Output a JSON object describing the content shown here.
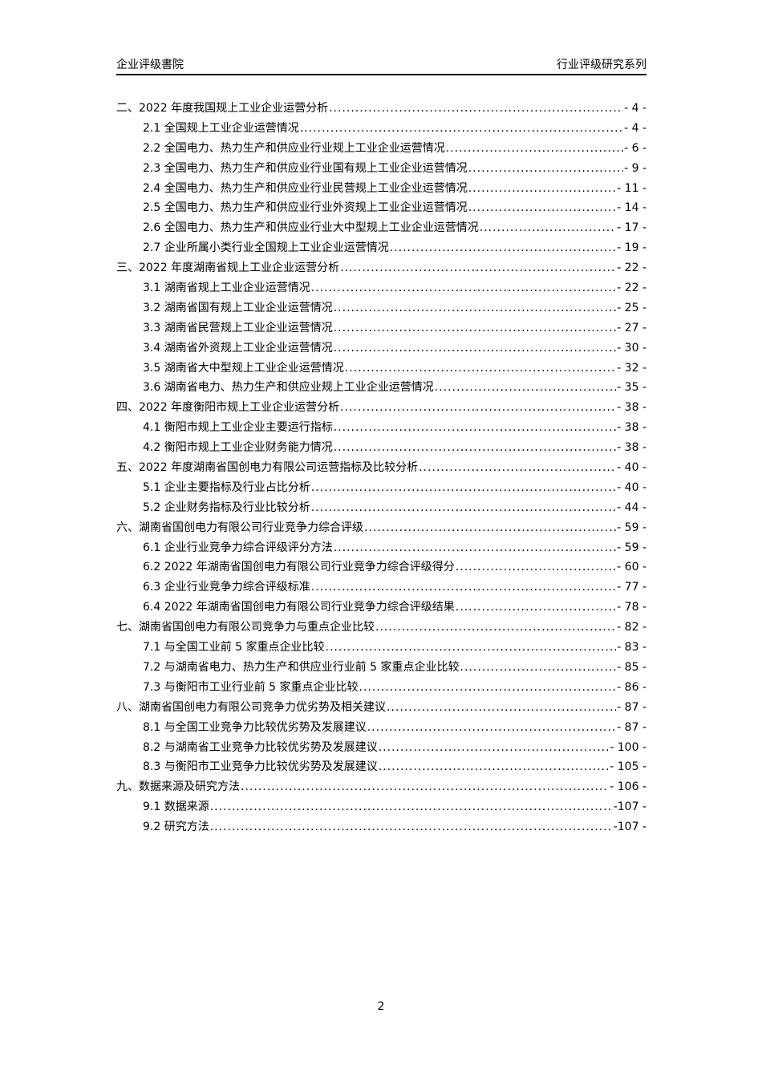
{
  "header": {
    "left": "企业评级書院",
    "right": "行业评级研究系列"
  },
  "toc": [
    {
      "level": 1,
      "label": "二、2022 年度我国规上工业企业运营分析",
      "page": "- 4 -"
    },
    {
      "level": 2,
      "label": "2.1 全国规上工业企业运营情况",
      "page": "- 4 -"
    },
    {
      "level": 2,
      "label": "2.2 全国电力、热力生产和供应业行业规上工业企业运营情况",
      "page": "- 6 -"
    },
    {
      "level": 2,
      "label": "2.3 全国电力、热力生产和供应业行业国有规上工业企业运营情况",
      "page": "- 9 -"
    },
    {
      "level": 2,
      "label": "2.4 全国电力、热力生产和供应业行业民营规上工业企业运营情况",
      "page": "- 11 -"
    },
    {
      "level": 2,
      "label": "2.5 全国电力、热力生产和供应业行业外资规上工业企业运营情况",
      "page": "- 14 -"
    },
    {
      "level": 2,
      "label": "2.6 全国电力、热力生产和供应业行业大中型规上工业企业运营情况",
      "page": "- 17 -"
    },
    {
      "level": 2,
      "label": "2.7 企业所属小类行业全国规上工业企业运营情况",
      "page": "- 19 -"
    },
    {
      "level": 1,
      "label": "三、2022 年度湖南省规上工业企业运营分析",
      "page": "- 22 -"
    },
    {
      "level": 2,
      "label": "3.1 湖南省规上工业企业运营情况",
      "page": "- 22 -"
    },
    {
      "level": 2,
      "label": "3.2 湖南省国有规上工业企业运营情况",
      "page": "- 25 -"
    },
    {
      "level": 2,
      "label": "3.3 湖南省民营规上工业企业运营情况",
      "page": "- 27 -"
    },
    {
      "level": 2,
      "label": "3.4 湖南省外资规上工业企业运营情况",
      "page": "- 30 -"
    },
    {
      "level": 2,
      "label": "3.5 湖南省大中型规上工业企业运营情况",
      "page": "- 32 -"
    },
    {
      "level": 2,
      "label": "3.6 湖南省电力、热力生产和供应业规上工业企业运营情况",
      "page": "- 35 -"
    },
    {
      "level": 1,
      "label": "四、2022 年度衡阳市规上工业企业运营分析",
      "page": "- 38 -"
    },
    {
      "level": 2,
      "label": "4.1 衡阳市规上工业企业主要运行指标",
      "page": "- 38 -"
    },
    {
      "level": 2,
      "label": "4.2 衡阳市规上工业企业财务能力情况",
      "page": "- 38 -"
    },
    {
      "level": 1,
      "label": "五、2022 年度湖南省国创电力有限公司运营指标及比较分析",
      "page": "- 40 -"
    },
    {
      "level": 2,
      "label": "5.1 企业主要指标及行业占比分析",
      "page": "- 40 -"
    },
    {
      "level": 2,
      "label": "5.2 企业财务指标及行业比较分析",
      "page": "- 44 -"
    },
    {
      "level": 1,
      "label": "六、湖南省国创电力有限公司行业竞争力综合评级",
      "page": "- 59 -"
    },
    {
      "level": 2,
      "label": "6.1 企业行业竞争力综合评级评分方法",
      "page": "- 59 -"
    },
    {
      "level": 2,
      "label": "6.2 2022 年湖南省国创电力有限公司行业竞争力综合评级得分",
      "page": "- 60 -"
    },
    {
      "level": 2,
      "label": "6.3 企业行业竞争力综合评级标准",
      "page": "- 77 -"
    },
    {
      "level": 2,
      "label": "6.4 2022 年湖南省国创电力有限公司行业竞争力综合评级结果",
      "page": "- 78 -"
    },
    {
      "level": 1,
      "label": "七、湖南省国创电力有限公司竞争力与重点企业比较",
      "page": "- 82 -"
    },
    {
      "level": 2,
      "label": "7.1 与全国工业前 5 家重点企业比较",
      "page": "- 83 -"
    },
    {
      "level": 2,
      "label": "7.2 与湖南省电力、热力生产和供应业行业前 5 家重点企业比较",
      "page": "- 85 -"
    },
    {
      "level": 2,
      "label": "7.3 与衡阳市工业行业前 5 家重点企业比较",
      "page": "- 86 -"
    },
    {
      "level": 1,
      "label": "八、湖南省国创电力有限公司竞争力优劣势及相关建议",
      "page": "- 87 -"
    },
    {
      "level": 2,
      "label": "8.1 与全国工业竞争力比较优劣势及发展建议",
      "page": "- 87 -"
    },
    {
      "level": 2,
      "label": "8.2 与湖南省工业竞争力比较优劣势及发展建议",
      "page": "- 100 -"
    },
    {
      "level": 2,
      "label": "8.3 与衡阳市工业竞争力比较优劣势及发展建议",
      "page": "- 105 -"
    },
    {
      "level": 1,
      "label": "九、数据来源及研究方法",
      "page": "- 106 -"
    },
    {
      "level": 2,
      "label": "9.1 数据来源",
      "page": "-107 -"
    },
    {
      "level": 2,
      "label": "9.2 研究方法",
      "page": "-107 -"
    }
  ],
  "footer": {
    "page_number": "2"
  }
}
